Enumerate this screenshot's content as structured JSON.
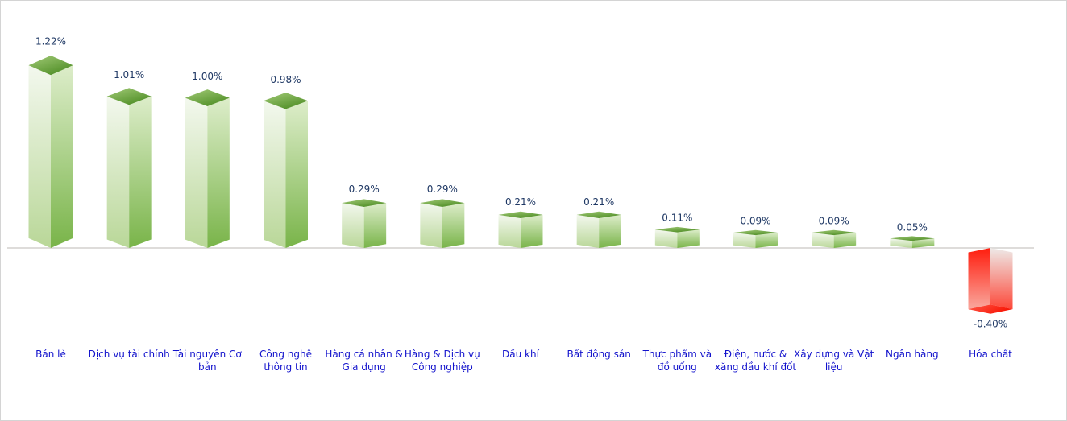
{
  "chart": {
    "background_color": "#ffffff",
    "frame_border_color": "#d4d4d4",
    "axis_line_color": "#d3d0cd",
    "value_label_color": "#1f3864",
    "category_label_color": "#1212cc",
    "positive_bar": {
      "left_face_top": "#f3f8ee",
      "left_face_bottom": "#b9d798",
      "right_face_top": "#ddedca",
      "right_face_bottom": "#79b449",
      "top_face_light": "#a3cb78",
      "top_face_dark": "#4f8e26"
    },
    "negative_bar": {
      "left_face_top": "#ff1d0e",
      "left_face_bottom": "#f9a89e",
      "right_face_top": "#eeeae8",
      "right_face_bottom": "#fd4839",
      "bottom_face_light": "#ff5a4a",
      "bottom_face_dark": "#f81505"
    }
  },
  "chart_data": {
    "type": "bar",
    "style": "3d-column",
    "title": "",
    "xlabel": "",
    "ylabel": "",
    "unit": "%",
    "grid": false,
    "legend": false,
    "ylim": [
      -0.5,
      1.3
    ],
    "categories": [
      "Bán lẻ",
      "Dịch vụ tài chính",
      "Tài nguyên Cơ bản",
      "Công nghệ thông tin",
      "Hàng cá nhân & Gia dụng",
      "Hàng & Dịch vụ Công nghiệp",
      "Dầu khí",
      "Bất động sản",
      "Thực phẩm và đồ uống",
      "Điện, nước & xăng dầu khí đốt",
      "Xây dựng và Vật liệu",
      "Ngân hàng",
      "Hóa chất"
    ],
    "values": [
      1.22,
      1.01,
      1.0,
      0.98,
      0.29,
      0.29,
      0.21,
      0.21,
      0.11,
      0.09,
      0.09,
      0.05,
      -0.4
    ],
    "value_labels": [
      "1.22%",
      "1.01%",
      "1.00%",
      "0.98%",
      "0.29%",
      "0.29%",
      "0.21%",
      "0.21%",
      "0.11%",
      "0.09%",
      "0.09%",
      "0.05%",
      "-0.40%"
    ],
    "positive_color": "#79b449",
    "negative_color": "#ff1d0e"
  }
}
